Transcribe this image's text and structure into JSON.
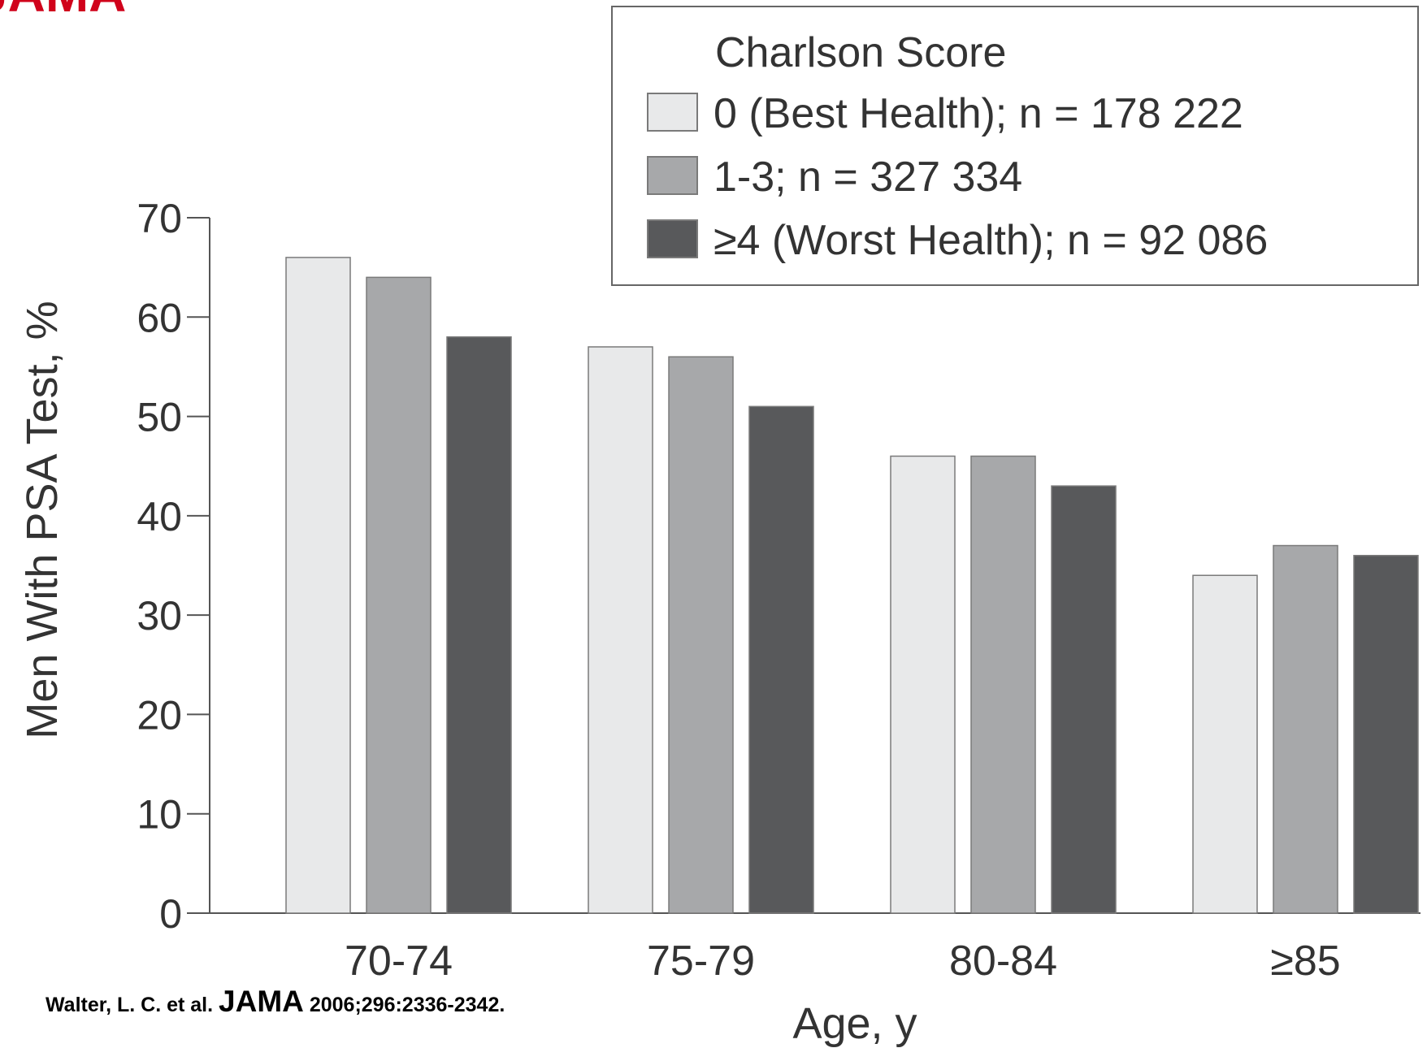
{
  "logo": {
    "text": "JAMA"
  },
  "citation": {
    "prefix": "Walter, L. C. et al.",
    "journal": "JAMA",
    "suffix": "2006;296:2336-2342."
  },
  "chart_data": {
    "type": "bar",
    "xlabel": "Age, y",
    "ylabel": "Men With PSA Test, %",
    "ylim": [
      0,
      70
    ],
    "yticks": [
      0,
      10,
      20,
      30,
      40,
      50,
      60,
      70
    ],
    "categories": [
      "70-74",
      "75-79",
      "80-84",
      "≥85"
    ],
    "legend": {
      "title": "Charlson Score",
      "position": "top-right"
    },
    "grid": false,
    "series": [
      {
        "name": "0 (Best Health); n = 178 222",
        "color": "#e8e9ea",
        "values": [
          66,
          57,
          46,
          34
        ]
      },
      {
        "name": "1-3; n = 327 334",
        "color": "#a7a8aa",
        "values": [
          64,
          56,
          46,
          37
        ]
      },
      {
        "name": "≥4 (Worst Health); n = 92 086",
        "color": "#58595b",
        "values": [
          58,
          51,
          43,
          36
        ]
      }
    ]
  }
}
